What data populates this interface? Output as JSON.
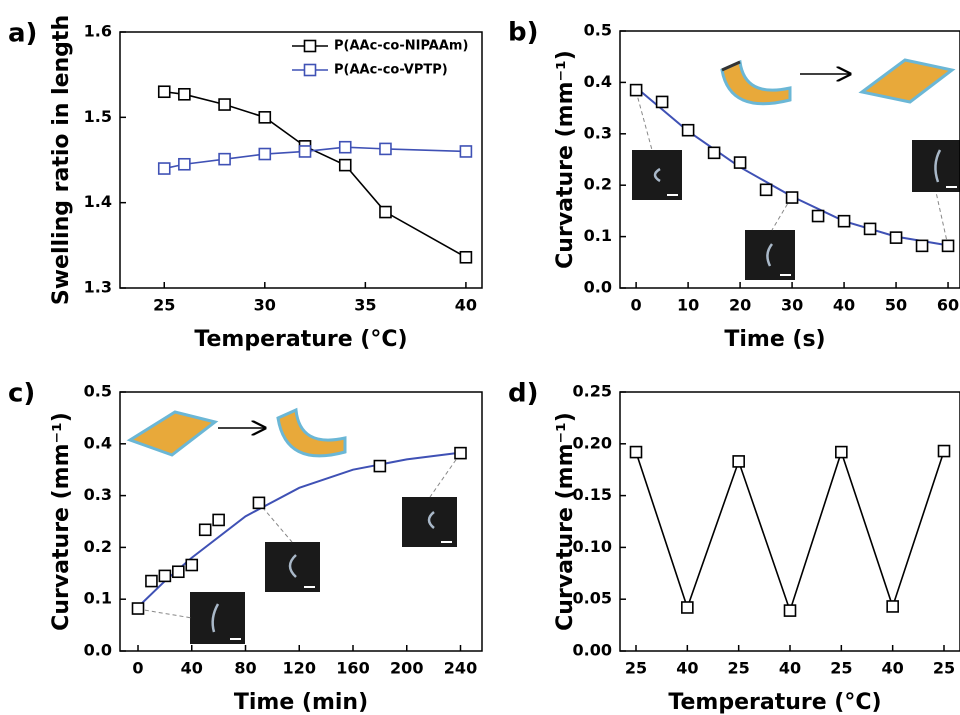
{
  "chart_data": [
    {
      "type": "line",
      "panel_label": "a)",
      "xlabel": "Temperature (°C)",
      "ylabel": "Swelling ratio in length",
      "x": [
        25,
        26,
        28,
        30,
        32,
        34,
        36,
        40
      ],
      "series": [
        {
          "name": "P(AAc-co-NIPAAm)",
          "color": "#000000",
          "values": [
            1.53,
            1.527,
            1.515,
            1.5,
            1.466,
            1.444,
            1.389,
            1.336
          ]
        },
        {
          "name": "P(AAc-co-VPTP)",
          "color": "#3f51b5",
          "values": [
            1.44,
            1.445,
            1.451,
            1.457,
            1.46,
            1.465,
            1.463,
            1.46
          ]
        }
      ],
      "xlim": [
        22.8,
        40.8
      ],
      "xticks": [
        25,
        30,
        35,
        40
      ],
      "ylim": [
        1.3,
        1.6
      ],
      "yticks": [
        1.3,
        1.4,
        1.5,
        1.6
      ],
      "legend": "upper right"
    },
    {
      "type": "scatter",
      "panel_label": "b)",
      "xlabel": "Time (s)",
      "ylabel": "Curvature (mm⁻¹)",
      "x": [
        0,
        5,
        10,
        15,
        20,
        25,
        30,
        35,
        40,
        45,
        50,
        55,
        60
      ],
      "values": [
        0.385,
        0.362,
        0.307,
        0.263,
        0.244,
        0.191,
        0.176,
        0.14,
        0.13,
        0.115,
        0.098,
        0.082,
        0.082
      ],
      "color": "#000000",
      "fit": {
        "x": [
          0,
          10,
          20,
          30,
          40,
          50,
          60
        ],
        "values": [
          0.39,
          0.305,
          0.235,
          0.178,
          0.13,
          0.1,
          0.083
        ],
        "color": "#3f51b5"
      },
      "xlim": [
        -3.1,
        62.3
      ],
      "xticks": [
        0,
        10,
        20,
        30,
        40,
        50,
        60
      ],
      "ylim": [
        0,
        0.5
      ],
      "yticks": [
        {
          "value": 0,
          "label": "0.0"
        },
        0.1,
        0.2,
        0.3,
        0.4,
        0.5
      ]
    },
    {
      "type": "scatter",
      "panel_label": "c)",
      "xlabel": "Time (min)",
      "ylabel": "Curvature (mm⁻¹)",
      "x": [
        0,
        10,
        20,
        30,
        40,
        50,
        60,
        90,
        180,
        240
      ],
      "values": [
        0.082,
        0.135,
        0.145,
        0.153,
        0.166,
        0.234,
        0.253,
        0.286,
        0.357,
        0.382
      ],
      "color": "#000000",
      "fit": {
        "x": [
          0,
          20,
          40,
          80,
          120,
          160,
          200,
          240
        ],
        "values": [
          0.085,
          0.135,
          0.18,
          0.26,
          0.315,
          0.35,
          0.37,
          0.383
        ],
        "color": "#3f51b5"
      },
      "xlim": [
        -13.4,
        256
      ],
      "xticks": [
        0,
        40,
        80,
        120,
        160,
        200,
        240
      ],
      "ylim": [
        0,
        0.5
      ],
      "yticks": [
        {
          "value": 0,
          "label": "0.0"
        },
        0.1,
        0.2,
        0.3,
        0.4,
        0.5
      ]
    },
    {
      "type": "line",
      "panel_label": "d)",
      "xlabel": "Temperature (°C)",
      "ylabel": "Curvature (mm⁻¹)",
      "categories": [
        "25",
        "40",
        "25",
        "40",
        "25",
        "40",
        "25"
      ],
      "values": [
        0.192,
        0.042,
        0.183,
        0.039,
        0.192,
        0.043,
        0.193
      ],
      "color": "#000000",
      "ylim": [
        0,
        0.25
      ],
      "yticks": [
        {
          "value": 0,
          "label": "0.00"
        },
        0.05,
        {
          "value": 0.1,
          "label": "0.10"
        },
        0.15,
        {
          "value": 0.2,
          "label": "0.20"
        },
        0.25
      ]
    }
  ]
}
